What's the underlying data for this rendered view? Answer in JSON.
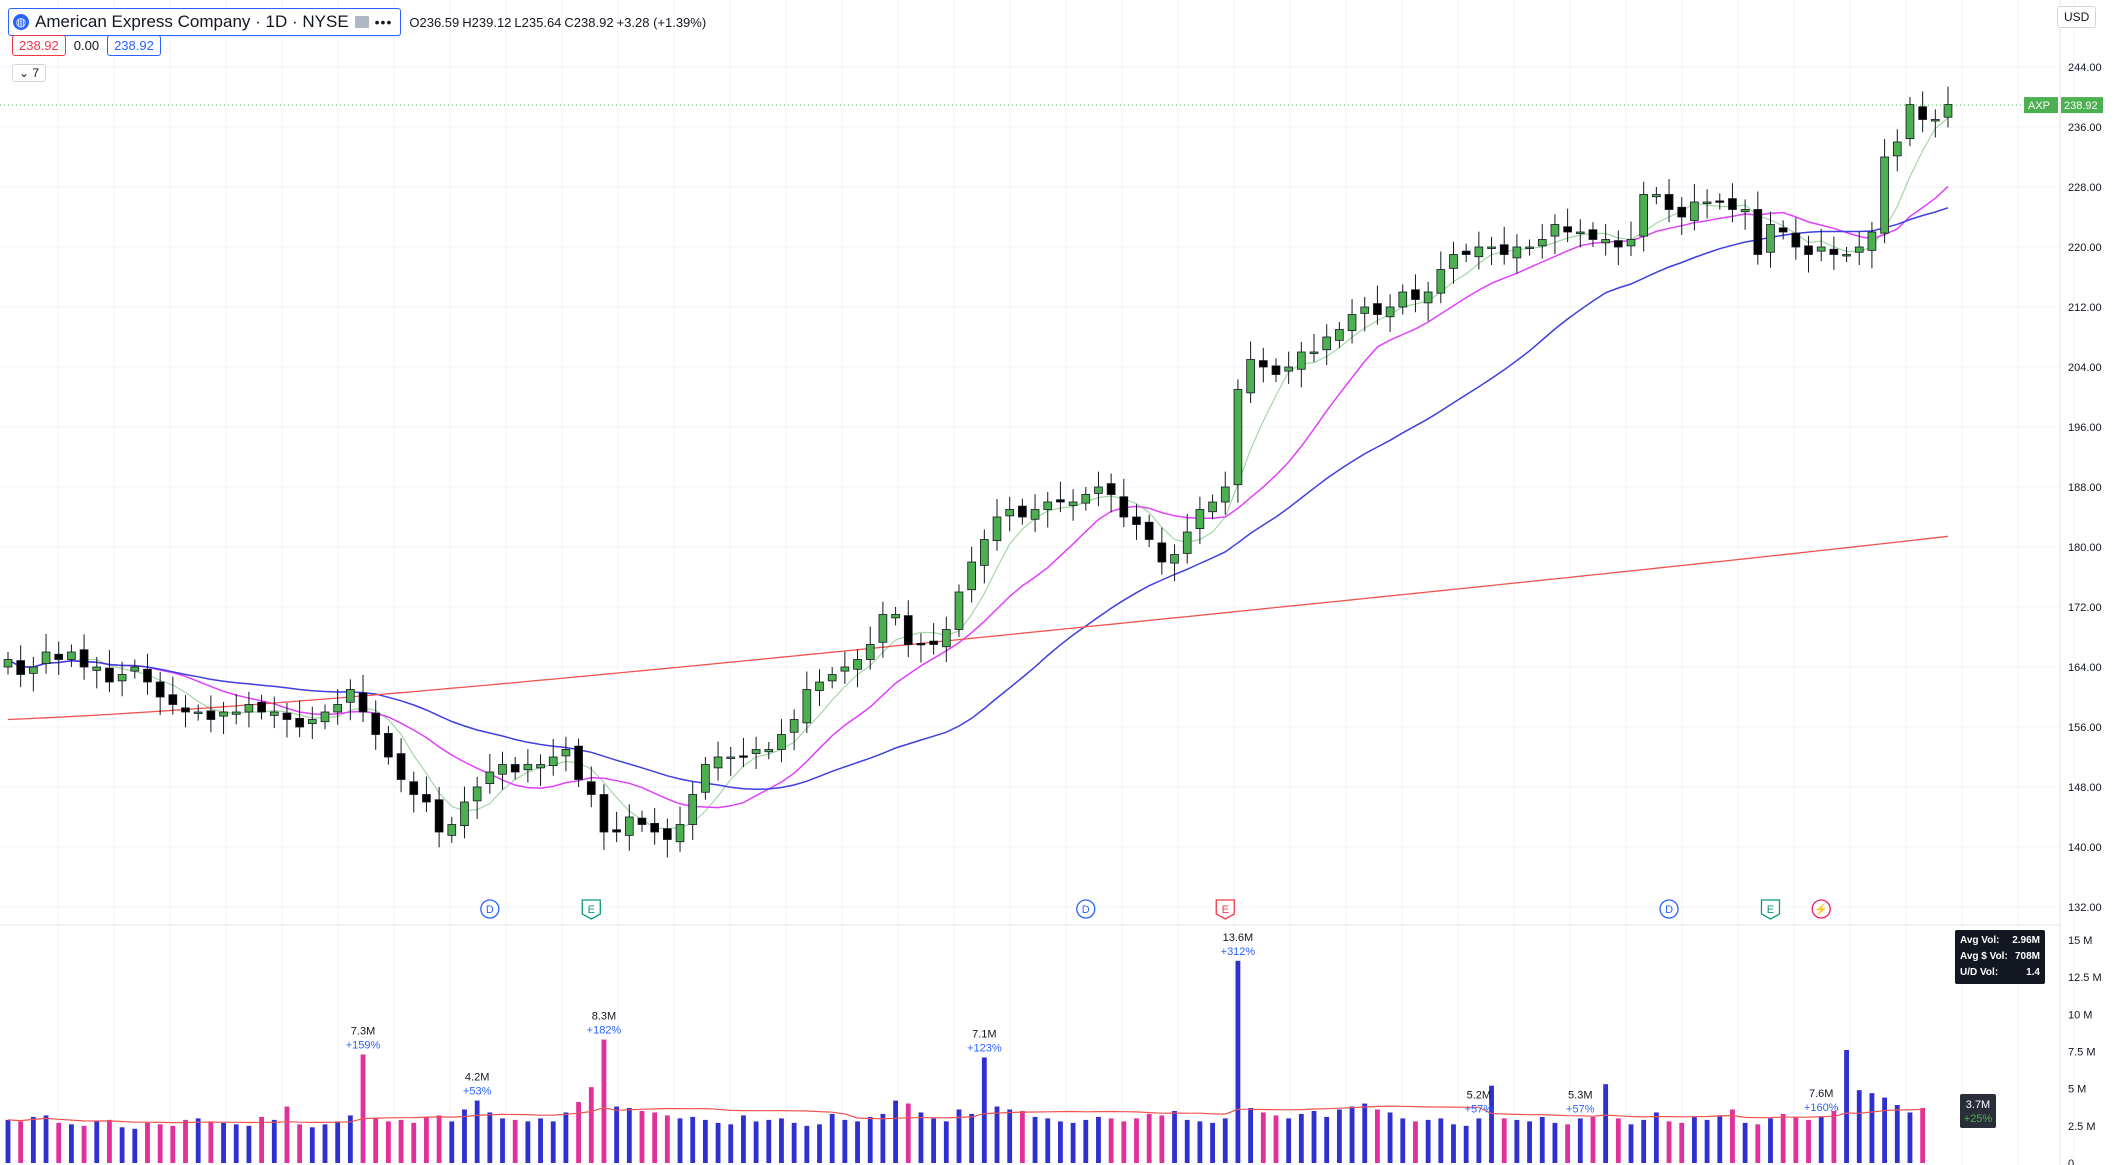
{
  "header": {
    "symbol_title": "American Express Company · 1D · NYSE",
    "ohlc": {
      "o": "O236.59",
      "h": "H239.12",
      "l": "L235.64",
      "c": "C238.92",
      "chg": "+3.28 (+1.39%)"
    },
    "bid": "238.92",
    "spread": "0.00",
    "ask": "238.92",
    "indicators_toggle": "7",
    "currency": "USD"
  },
  "colors": {
    "up": "#4caf50",
    "down": "#000000",
    "sma_fast": "#a5d6a7",
    "sma_mid": "#e040fb",
    "sma_slow": "#3f3fe0",
    "sma_long": "#ef5350",
    "vol_up": "#3030d0",
    "vol_down": "#e0309a",
    "avg_vol": "#ef5350"
  },
  "chart_data": {
    "type": "candlestick",
    "symbol": "AXP",
    "last_price": "238.92",
    "price_axis": {
      "ticks": [
        "244.00",
        "236.00",
        "228.00",
        "220.00",
        "212.00",
        "204.00",
        "196.00",
        "188.00",
        "180.00",
        "172.00",
        "164.00",
        "156.00",
        "148.00",
        "140.00",
        "132.00"
      ],
      "ylim": [
        128,
        248
      ]
    },
    "volume_axis": {
      "ticks": [
        "15 M",
        "12.5 M",
        "10 M",
        "7.5 M",
        "5 M",
        "2.5 M",
        "0"
      ]
    },
    "price_path": [
      165,
      163,
      164,
      166,
      165,
      166,
      164,
      164,
      162,
      163,
      164,
      162,
      160,
      159,
      158,
      158,
      157,
      158,
      158,
      159,
      158,
      158,
      157,
      156,
      157,
      158,
      159,
      161,
      158,
      155,
      152,
      149,
      147,
      146,
      142,
      143,
      146,
      148,
      150,
      151,
      150,
      151,
      151,
      152,
      153,
      149,
      147,
      142,
      142,
      144,
      143,
      142,
      141,
      143,
      147,
      151,
      152,
      152,
      152,
      153,
      153,
      155,
      157,
      161,
      162,
      163,
      164,
      165,
      167,
      171,
      171,
      167,
      167,
      167,
      169,
      174,
      178,
      181,
      184,
      185,
      184,
      185,
      186,
      186,
      186,
      187,
      188,
      187,
      184,
      183,
      181,
      178,
      179,
      182,
      185,
      186,
      188,
      201,
      205,
      204,
      203,
      204,
      206,
      206,
      208,
      209,
      211,
      212,
      211,
      212,
      214,
      213,
      214,
      217,
      219,
      219,
      220,
      220,
      219,
      220,
      220,
      221,
      223,
      222,
      222,
      221,
      221,
      220,
      221,
      227,
      227,
      225,
      224,
      226,
      226,
      226,
      225,
      225,
      219,
      223,
      222,
      220,
      219,
      220,
      219,
      219,
      220,
      222,
      232,
      234,
      239,
      237,
      237,
      239
    ],
    "volume": [
      2.9,
      2.8,
      3.1,
      3.2,
      2.7,
      2.6,
      2.5,
      2.8,
      2.9,
      2.4,
      2.3,
      2.7,
      2.6,
      2.5,
      2.9,
      3.0,
      2.8,
      2.7,
      2.6,
      2.5,
      3.1,
      2.9,
      3.8,
      2.6,
      2.4,
      2.6,
      2.8,
      3.2,
      7.3,
      3.0,
      2.8,
      2.9,
      2.7,
      3.1,
      3.2,
      2.8,
      3.6,
      4.2,
      3.4,
      3.0,
      2.9,
      2.8,
      3.0,
      2.8,
      3.4,
      4.1,
      5.1,
      8.3,
      3.8,
      3.7,
      3.5,
      3.4,
      3.2,
      3.0,
      3.1,
      2.9,
      2.7,
      2.6,
      3.2,
      2.8,
      2.9,
      3.0,
      2.7,
      2.5,
      2.6,
      3.3,
      2.9,
      2.8,
      3.1,
      3.3,
      4.2,
      4.0,
      3.4,
      3.0,
      2.8,
      3.6,
      3.3,
      7.1,
      3.8,
      3.6,
      3.5,
      3.1,
      3.0,
      2.8,
      2.7,
      2.9,
      3.1,
      3.0,
      2.8,
      3.0,
      3.3,
      3.2,
      3.5,
      2.9,
      2.8,
      2.7,
      3.0,
      13.6,
      3.7,
      3.4,
      3.2,
      3.0,
      3.3,
      3.5,
      3.1,
      3.6,
      3.8,
      4.0,
      3.6,
      3.4,
      3.0,
      2.8,
      2.9,
      3.0,
      2.6,
      2.5,
      3.0,
      5.2,
      3.0,
      2.9,
      2.8,
      3.1,
      2.7,
      2.6,
      3.0,
      3.1,
      5.3,
      3.0,
      2.6,
      2.9,
      3.4,
      2.8,
      2.7,
      3.1,
      2.9,
      3.2,
      3.6,
      2.7,
      2.6,
      3.0,
      3.3,
      3.1,
      2.9,
      3.1,
      3.5,
      7.6,
      4.9,
      4.7,
      4.4,
      3.9,
      3.4,
      3.7
    ],
    "volume_labels": [
      {
        "bar": 28,
        "value": "7.3M",
        "pct": "+159%"
      },
      {
        "bar": 37,
        "value": "4.2M",
        "pct": "+53%"
      },
      {
        "bar": 47,
        "value": "8.3M",
        "pct": "+182%"
      },
      {
        "bar": 77,
        "value": "7.1M",
        "pct": "+123%"
      },
      {
        "bar": 97,
        "value": "13.6M",
        "pct": "+312%"
      },
      {
        "bar": 116,
        "value": "5.2M",
        "pct": "+57%"
      },
      {
        "bar": 124,
        "value": "5.3M",
        "pct": "+57%"
      },
      {
        "bar": 143,
        "value": "7.6M",
        "pct": "+160%"
      }
    ],
    "current_volume": {
      "value": "3.7M",
      "pct": "+25%"
    },
    "events": [
      {
        "bar": 38,
        "label": "D"
      },
      {
        "bar": 46,
        "label": "E"
      },
      {
        "bar": 85,
        "label": "D"
      },
      {
        "bar": 96,
        "label": "E"
      },
      {
        "bar": 131,
        "label": "D"
      },
      {
        "bar": 139,
        "label": "E"
      },
      {
        "bar": 143,
        "label": "⚡"
      }
    ],
    "sma_long_ends": [
      157,
      181
    ],
    "volume_stats": [
      {
        "label": "Avg Vol:",
        "value": "2.96M"
      },
      {
        "label": "Avg $ Vol:",
        "value": "708M"
      },
      {
        "label": "U/D Vol:",
        "value": "1.4"
      }
    ]
  }
}
